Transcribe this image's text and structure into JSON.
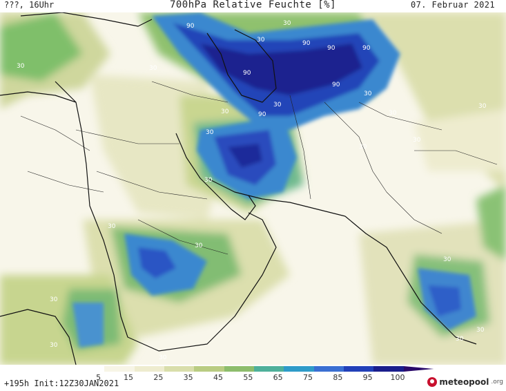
{
  "header": {
    "left": "???, 16Uhr",
    "title": "700hPa Relative Feuchte [%]",
    "date": "07. Februar 2021"
  },
  "footer": {
    "run": "+195h Init:12Z30JAN2021",
    "brand": "meteopool",
    "brand_tld": ".org"
  },
  "legend": {
    "ticks": [
      "5",
      "15",
      "25",
      "35",
      "45",
      "55",
      "65",
      "75",
      "85",
      "95",
      "100"
    ],
    "colors": [
      "#ffffff",
      "#f7f5e6",
      "#eeeccf",
      "#d9deab",
      "#b9cc82",
      "#8dbd6c",
      "#4fb09a",
      "#2f9bc8",
      "#3a6fd2",
      "#2240b8",
      "#1a1e8c",
      "#2a0a6a"
    ]
  },
  "map_labels": [
    {
      "text": "90"
    },
    {
      "text": "90"
    },
    {
      "text": "90"
    },
    {
      "text": "90"
    },
    {
      "text": "90"
    },
    {
      "text": "90"
    },
    {
      "text": "90"
    },
    {
      "text": "30"
    },
    {
      "text": "30"
    },
    {
      "text": "30"
    },
    {
      "text": "30"
    },
    {
      "text": "30"
    },
    {
      "text": "30"
    },
    {
      "text": "30"
    },
    {
      "text": "30"
    },
    {
      "text": "30"
    },
    {
      "text": "30"
    },
    {
      "text": "30"
    },
    {
      "text": "30"
    },
    {
      "text": "30"
    },
    {
      "text": "30"
    },
    {
      "text": "30"
    },
    {
      "text": "30"
    },
    {
      "text": "30"
    },
    {
      "text": "30"
    },
    {
      "text": "30"
    },
    {
      "text": "30"
    },
    {
      "text": "30"
    }
  ]
}
